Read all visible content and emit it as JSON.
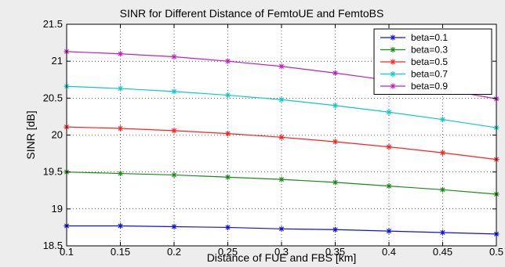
{
  "chart_data": {
    "type": "line",
    "title": "SINR for Different Distance of FemtoUE and FemtoBS",
    "xlabel": "Distance of FUE and FBS [km]",
    "ylabel": "SINR [dB]",
    "xlim": [
      0.1,
      0.5
    ],
    "ylim": [
      18.5,
      21.5
    ],
    "x": [
      0.1,
      0.15,
      0.2,
      0.25,
      0.3,
      0.35,
      0.4,
      0.45,
      0.5
    ],
    "xticks": [
      "0.1",
      "0.15",
      "0.2",
      "0.25",
      "0.3",
      "0.35",
      "0.4",
      "0.45",
      "0.5"
    ],
    "yticks": [
      "18.5",
      "19",
      "19.5",
      "20",
      "20.5",
      "21",
      "21.5"
    ],
    "grid": true,
    "legend_position": "top-right",
    "marker": "*",
    "series": [
      {
        "name": "beta=0.1",
        "color": "#1010e0",
        "values": [
          18.77,
          18.77,
          18.76,
          18.75,
          18.73,
          18.72,
          18.7,
          18.68,
          18.66
        ]
      },
      {
        "name": "beta=0.3",
        "color": "#1a8a1a",
        "values": [
          19.5,
          19.48,
          19.46,
          19.43,
          19.4,
          19.36,
          19.31,
          19.26,
          19.2
        ]
      },
      {
        "name": "beta=0.5",
        "color": "#ff2020",
        "values": [
          20.11,
          20.09,
          20.06,
          20.02,
          19.97,
          19.91,
          19.84,
          19.76,
          19.67
        ]
      },
      {
        "name": "beta=0.7",
        "color": "#10c8c8",
        "values": [
          20.66,
          20.63,
          20.59,
          20.54,
          20.48,
          20.4,
          20.31,
          20.21,
          20.1
        ]
      },
      {
        "name": "beta=0.9",
        "color": "#c020c0",
        "values": [
          21.13,
          21.1,
          21.06,
          21.0,
          20.93,
          20.84,
          20.74,
          20.62,
          20.49
        ]
      }
    ]
  }
}
